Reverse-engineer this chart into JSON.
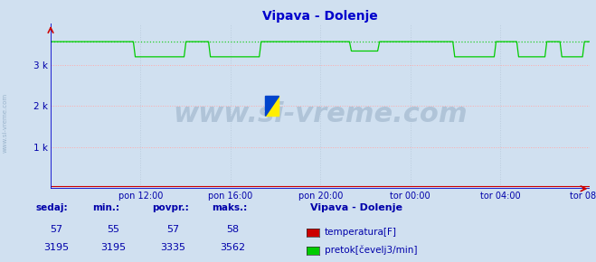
{
  "title": "Vipava - Dolenje",
  "bg_color": "#d0e0f0",
  "plot_bg_color": "#d0e0f0",
  "grid_color_h": "#ffaaaa",
  "grid_color_v": "#bbccdd",
  "axis_color": "#0000cc",
  "arrow_color": "#cc0000",
  "flow_color": "#00cc00",
  "temp_color": "#cc0000",
  "ylim": [
    0,
    4000
  ],
  "yticks": [
    1000,
    2000,
    3000
  ],
  "ytick_labels": [
    "1 k",
    "2 k",
    "3 k"
  ],
  "xtick_labels": [
    "pon 12:00",
    "pon 16:00",
    "pon 20:00",
    "tor 00:00",
    "tor 04:00",
    "tor 08:00"
  ],
  "watermark": "www.si-vreme.com",
  "watermark_color": "#b0c4d8",
  "label_color": "#0000aa",
  "legend_title": "Vipava - Dolenje",
  "legend_items": [
    "temperatura[F]",
    "pretok[čevelj3/min]"
  ],
  "legend_colors": [
    "#cc0000",
    "#00cc00"
  ],
  "table_headers": [
    "sedaj:",
    "min.:",
    "povpr.:",
    "maks.:"
  ],
  "table_values_temp": [
    57,
    55,
    57,
    58
  ],
  "table_values_flow": [
    3195,
    3195,
    3335,
    3562
  ],
  "n_points": 288,
  "flow_max": 3562,
  "flow_base": 3195,
  "flow_mid": 3335,
  "temp_value": 57
}
